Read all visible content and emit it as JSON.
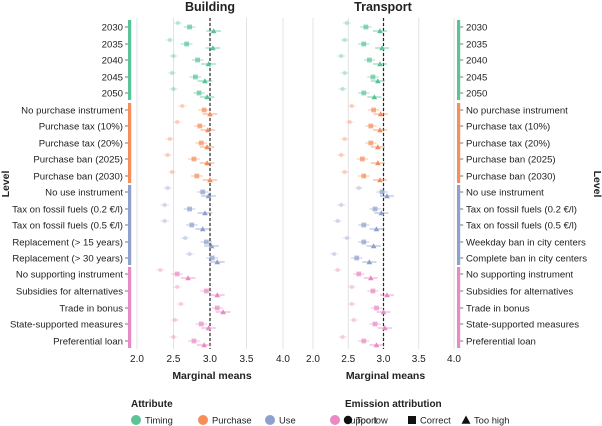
{
  "chart_data": [
    {
      "type": "scatter",
      "title": "Building",
      "xlabel": "Marginal means",
      "ylabel": "Level",
      "xlim": [
        2.0,
        4.0
      ],
      "xticks": [
        2.0,
        2.5,
        3.0,
        3.5,
        4.0
      ],
      "reference_line": 3.0,
      "grid": true,
      "categories": [
        {
          "attribute": "Timing",
          "label": "2030",
          "values": [
            2.56,
            2.72,
            3.05
          ]
        },
        {
          "attribute": "Timing",
          "label": "2035",
          "values": [
            2.45,
            2.68,
            3.04
          ]
        },
        {
          "attribute": "Timing",
          "label": "2040",
          "values": [
            2.5,
            2.83,
            2.98
          ]
        },
        {
          "attribute": "Timing",
          "label": "2045",
          "values": [
            2.48,
            2.8,
            2.93
          ]
        },
        {
          "attribute": "Timing",
          "label": "2050",
          "values": [
            2.5,
            2.85,
            2.96
          ]
        },
        {
          "attribute": "Purchase",
          "label": "No purchase instrument",
          "values": [
            2.62,
            2.92,
            3.0
          ]
        },
        {
          "attribute": "Purchase",
          "label": "Purchase tax (10%)",
          "values": [
            2.55,
            2.86,
            2.97
          ]
        },
        {
          "attribute": "Purchase",
          "label": "Purchase tax (20%)",
          "values": [
            2.45,
            2.88,
            2.96
          ]
        },
        {
          "attribute": "Purchase",
          "label": "Purchase ban (2025)",
          "values": [
            2.42,
            2.78,
            2.96
          ]
        },
        {
          "attribute": "Purchase",
          "label": "Purchase ban (2030)",
          "values": [
            2.48,
            2.82,
            3.0
          ]
        },
        {
          "attribute": "Use",
          "label": "No use instrument",
          "values": [
            2.42,
            2.9,
            2.98
          ]
        },
        {
          "attribute": "Use",
          "label": "Tax on fossil fuels (0.2 €/l)",
          "values": [
            2.38,
            2.72,
            2.93
          ]
        },
        {
          "attribute": "Use",
          "label": "Tax on fossil fuels (0.5 €/l)",
          "values": [
            2.38,
            2.75,
            2.9
          ]
        },
        {
          "attribute": "Use",
          "label": "Replacement (> 15 years)",
          "values": [
            2.66,
            2.95,
            3.02
          ]
        },
        {
          "attribute": "Use",
          "label": "Replacement (> 30 years)",
          "values": [
            2.72,
            3.03,
            3.1
          ]
        },
        {
          "attribute": "Support",
          "label": "No supporting instrument",
          "values": [
            2.32,
            2.55,
            2.7
          ]
        },
        {
          "attribute": "Support",
          "label": "Subsidies for alternatives",
          "values": [
            2.55,
            2.95,
            3.1
          ]
        },
        {
          "attribute": "Support",
          "label": "Trade in bonus",
          "values": [
            2.6,
            3.1,
            3.18
          ]
        },
        {
          "attribute": "Support",
          "label": "State-supported measures",
          "values": [
            2.52,
            2.88,
            2.98
          ]
        },
        {
          "attribute": "Support",
          "label": "Preferential loan",
          "values": [
            2.5,
            2.78,
            2.92
          ]
        }
      ]
    },
    {
      "type": "scatter",
      "title": "Transport",
      "xlabel": "Marginal means",
      "ylabel": "Level",
      "xlim": [
        2.0,
        4.0
      ],
      "xticks": [
        2.0,
        2.5,
        3.0,
        3.5,
        4.0
      ],
      "reference_line": 3.0,
      "grid": true,
      "categories": [
        {
          "attribute": "Timing",
          "label": "2030",
          "values": [
            2.48,
            2.75,
            2.95
          ]
        },
        {
          "attribute": "Timing",
          "label": "2035",
          "values": [
            2.45,
            2.72,
            2.98
          ]
        },
        {
          "attribute": "Timing",
          "label": "2040",
          "values": [
            2.4,
            2.8,
            2.95
          ]
        },
        {
          "attribute": "Timing",
          "label": "2045",
          "values": [
            2.45,
            2.85,
            2.92
          ]
        },
        {
          "attribute": "Timing",
          "label": "2050",
          "values": [
            2.42,
            2.72,
            2.87
          ]
        },
        {
          "attribute": "Purchase",
          "label": "No purchase instrument",
          "values": [
            2.55,
            2.86,
            2.96
          ]
        },
        {
          "attribute": "Purchase",
          "label": "Purchase tax (10%)",
          "values": [
            2.52,
            2.82,
            2.95
          ]
        },
        {
          "attribute": "Purchase",
          "label": "Purchase tax (20%)",
          "values": [
            2.45,
            2.82,
            2.92
          ]
        },
        {
          "attribute": "Purchase",
          "label": "Purchase ban (2025)",
          "values": [
            2.4,
            2.7,
            2.92
          ]
        },
        {
          "attribute": "Purchase",
          "label": "Purchase ban (2030)",
          "values": [
            2.45,
            2.72,
            2.95
          ]
        },
        {
          "attribute": "Use",
          "label": "No use instrument",
          "values": [
            2.65,
            2.98,
            3.05
          ]
        },
        {
          "attribute": "Use",
          "label": "Tax on fossil fuels (0.2 €/l)",
          "values": [
            2.4,
            2.88,
            2.97
          ]
        },
        {
          "attribute": "Use",
          "label": "Tax on fossil fuels (0.5 €/l)",
          "values": [
            2.35,
            2.72,
            2.9
          ]
        },
        {
          "attribute": "Use",
          "label": "Weekday ban in city centers",
          "values": [
            2.48,
            2.72,
            2.86
          ]
        },
        {
          "attribute": "Use",
          "label": "Complete ban in city centers",
          "values": [
            2.3,
            2.62,
            2.8
          ]
        },
        {
          "attribute": "Support",
          "label": "No supporting instrument",
          "values": [
            2.35,
            2.65,
            2.82
          ]
        },
        {
          "attribute": "Support",
          "label": "Subsidies for alternatives",
          "values": [
            2.55,
            2.85,
            3.05
          ]
        },
        {
          "attribute": "Support",
          "label": "Trade in bonus",
          "values": [
            2.55,
            2.9,
            3.0
          ]
        },
        {
          "attribute": "Support",
          "label": "State-supported measures",
          "values": [
            2.58,
            2.88,
            3.02
          ]
        },
        {
          "attribute": "Support",
          "label": "Preferential loan",
          "values": [
            2.42,
            2.72,
            2.9
          ]
        }
      ]
    }
  ],
  "legend": {
    "attribute_title": "Attribute",
    "attributes": [
      {
        "label": "Timing",
        "color": "#5ac397"
      },
      {
        "label": "Purchase",
        "color": "#f48e5a"
      },
      {
        "label": "Use",
        "color": "#8fa0cc"
      },
      {
        "label": "Support",
        "color": "#e88ac3"
      }
    ],
    "emission_title": "Emission attribution",
    "emission": [
      {
        "label": "Too low",
        "shape": "circle"
      },
      {
        "label": "Correct",
        "shape": "square"
      },
      {
        "label": "Too high",
        "shape": "triangle"
      }
    ]
  },
  "colors": {
    "Timing": "#5ac397",
    "Purchase": "#f48e5a",
    "Use": "#8fa0cc",
    "Support": "#e88ac3"
  }
}
